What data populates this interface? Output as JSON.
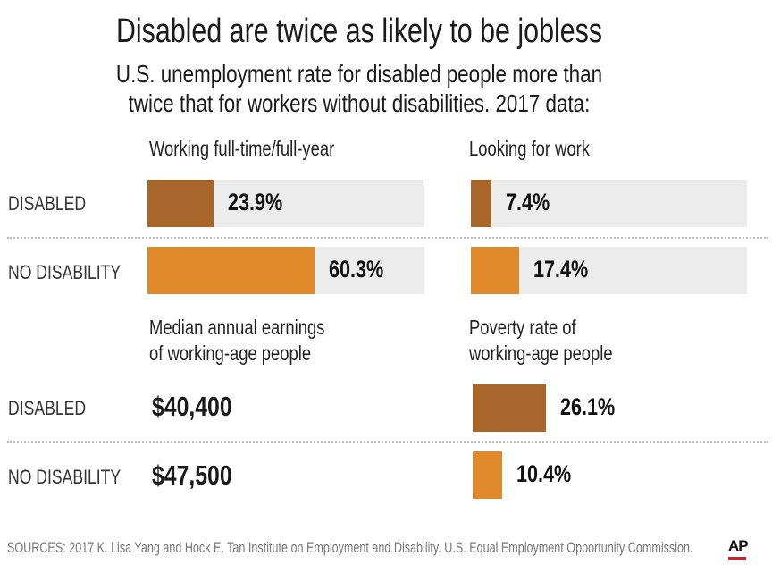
{
  "title": "Disabled are twice as likely to be jobless",
  "subtitle": "U.S. unemployment rate for disabled people more than\ntwice that for workers without disabilities. 2017 data:",
  "row_labels": {
    "disabled": "DISABLED",
    "no_disability": "NO DISABILITY"
  },
  "colors": {
    "disabled": "#a8662a",
    "no_disability": "#e0892a",
    "track": "#ececec"
  },
  "chart_data": [
    {
      "type": "bar",
      "title": "Working full-time/full-year",
      "categories": [
        "DISABLED",
        "NO DISABILITY"
      ],
      "values": [
        23.9,
        60.3
      ],
      "labels": [
        "23.9%",
        "60.3%"
      ],
      "unit": "%",
      "xlim": [
        0,
        100
      ],
      "track": true
    },
    {
      "type": "bar",
      "title": "Looking for work",
      "categories": [
        "DISABLED",
        "NO DISABILITY"
      ],
      "values": [
        7.4,
        17.4
      ],
      "labels": [
        "7.4%",
        "17.4%"
      ],
      "unit": "%",
      "xlim": [
        0,
        100
      ],
      "track": true
    },
    {
      "type": "table",
      "title": "Median annual earnings\nof working-age people",
      "categories": [
        "DISABLED",
        "NO DISABILITY"
      ],
      "values": [
        40400,
        47500
      ],
      "labels": [
        "$40,400",
        "$47,500"
      ]
    },
    {
      "type": "bar",
      "title": "Poverty rate of\nworking-age people",
      "categories": [
        "DISABLED",
        "NO DISABILITY"
      ],
      "values": [
        26.1,
        10.4
      ],
      "labels": [
        "26.1%",
        "10.4%"
      ],
      "unit": "%",
      "xlim": [
        0,
        100
      ],
      "track": false
    }
  ],
  "source": "SOURCES: 2017 K. Lisa Yang and Hock E. Tan Institute on Employment and Disability. U.S. Equal Employment Opportunity Commission.",
  "logo": "AP"
}
